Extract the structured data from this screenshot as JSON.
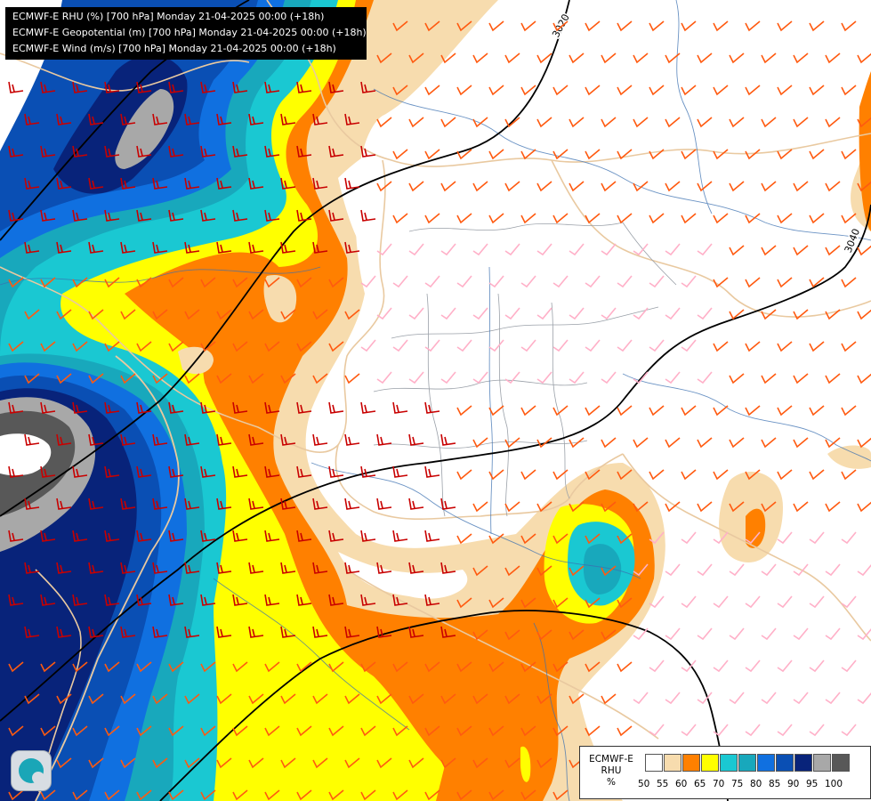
{
  "titles": [
    "ECMWF-E RHU (%) [700 hPa] Monday 21-04-2025 00:00 (+18h)",
    "ECMWF-E Geopotential (m) [700 hPa] Monday 21-04-2025 00:00 (+18h)",
    "ECMWF-E Wind (m/s) [700 hPa] Monday 21-04-2025 00:00 (+18h)"
  ],
  "legend": {
    "label_line1": "ECMWF-E",
    "label_line2": "RHU",
    "label_line3": "%",
    "ticks": [
      "50",
      "55",
      "60",
      "65",
      "70",
      "75",
      "80",
      "85",
      "90",
      "95",
      "100"
    ],
    "colors": [
      "#ffffff",
      "#f7dcae",
      "#ff8000",
      "#ffff00",
      "#1ac8d2",
      "#18a8bc",
      "#1070e0",
      "#0a4fb4",
      "#08237a",
      "#a8a8a8",
      "#585858"
    ]
  },
  "contours": [
    {
      "value": "3020"
    },
    {
      "value": "3040"
    }
  ],
  "icons": {
    "logo": "ecmwf-swirl-logo"
  },
  "colors": {
    "barb_pink": "#ffb0c8",
    "barb_orange": "#ff5a10",
    "barb_red": "#c80000",
    "border": "#e9c9a0",
    "river": "#3a6fb0"
  }
}
